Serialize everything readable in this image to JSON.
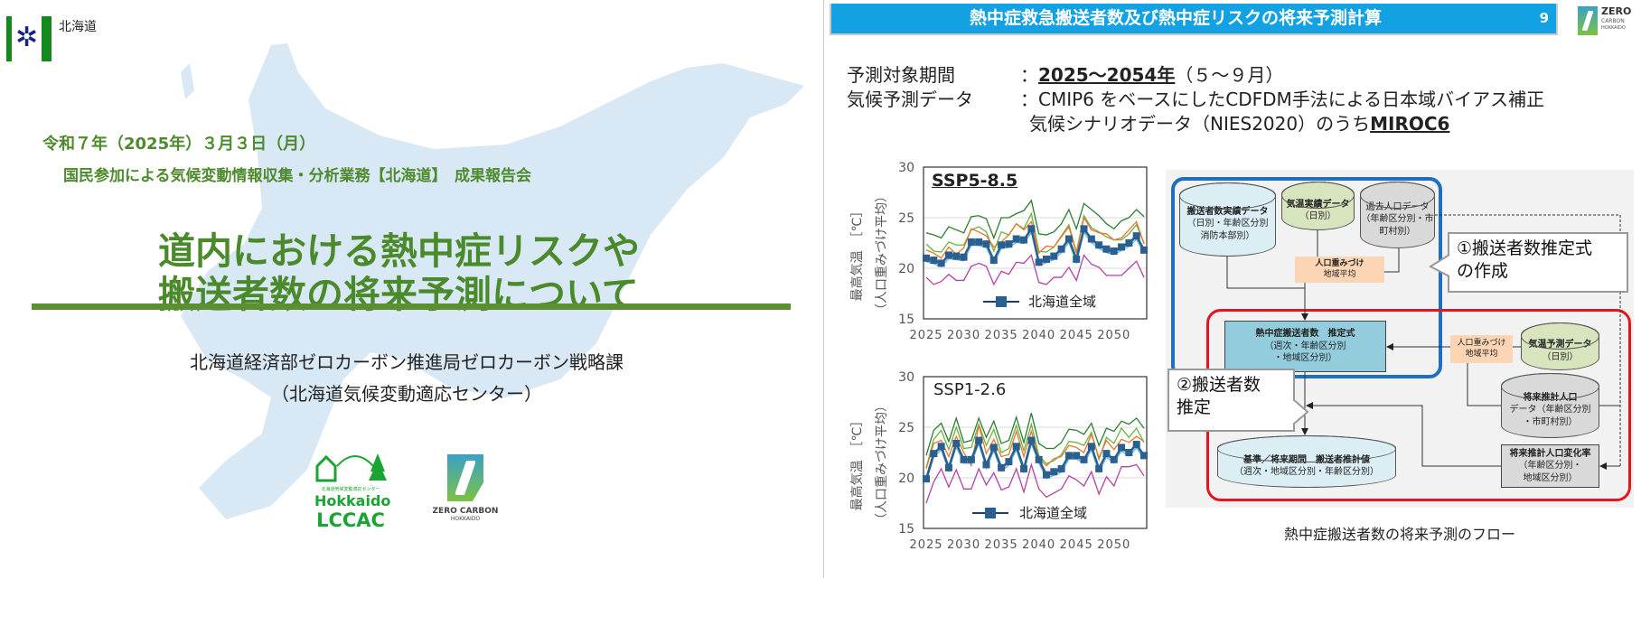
{
  "left": {
    "logo_text": "北海道",
    "date": "令和７年（2025年）３月３日（月）",
    "event": "国民参加による気候変動情報収集・分析業務【北海道】　成果報告会",
    "title_line1": "道内における熱中症リスクや",
    "title_line2": "搬送者数の将来予測について",
    "org": "北海道経済部ゼロカーボン推進局ゼロカーボン戦略課",
    "org_sub": "（北海道気候変動適応センター）",
    "lccac_logo": {
      "small": "北海道気候変動適応センター",
      "line1": "Hokkaido",
      "line2": "LCCAC"
    },
    "zc_logo": {
      "line1": "ZERO CARBON",
      "line2": "HOKKAIDO"
    },
    "colors": {
      "title_green": "#4e8a2d",
      "map_blue": "#d8e8f5"
    }
  },
  "right": {
    "header_title": "熱中症救急搬送者数及び熱中症リスクの将来予測計算",
    "page_number": "9",
    "header_color": "#12a2e4",
    "zc_logo": {
      "line1": "ZERO",
      "line2": "CARBON",
      "line3": "HOKKAIDO"
    },
    "info": {
      "period_label": "予測対象期間",
      "colon": "：",
      "period_bold": "2025～2054年",
      "period_rest": "（５～９月）",
      "data_label": "気候予測データ",
      "data_line1": "：CMIP6 をベースにしたCDFDM手法による日本域バイアス補正",
      "data_line2_pre": "気候シナリオデータ（NIES2020）のうち",
      "data_line2_bold": "MIROC6"
    },
    "flow": {
      "obs_transport": [
        "搬送者数実績データ",
        "（日別・年齢区分別",
        "消防本部別）"
      ],
      "obs_temp": [
        "気温実績データ",
        "（日別）"
      ],
      "past_pop": [
        "過去人口データ",
        "（年齢区分別・市",
        "町村別）"
      ],
      "weight1": [
        "人口重みづけ",
        "地域平均"
      ],
      "callout1": [
        "①搬送者数推定式",
        "の作成"
      ],
      "formula": [
        "熱中症搬送者数　推定式",
        "（週次・年齢区分別",
        "・地域区分別）"
      ],
      "weight2": [
        "人口重みづけ",
        "地域平均"
      ],
      "pred_temp": [
        "気温予測データ",
        "（日別）"
      ],
      "future_pop": [
        "将来推計人口",
        "データ（年齢区分別",
        "・市町村別）"
      ],
      "pop_change": [
        "将来推計人口変化率",
        "（年齢区分別・",
        "地域区分別）"
      ],
      "estimate": [
        "基準／将来期間　搬送者推計値",
        "（週次・地域区分別・年齢区分別）"
      ],
      "callout2": [
        "②搬送者数",
        "推定"
      ],
      "colors": {
        "blue_frame": "#1e6fc0",
        "red_frame": "#e8141c",
        "cyl_blue": "#dbeef4",
        "cyl_green": "#d7e4bd",
        "cyl_grey": "#d9d9d9",
        "weight": "#fcd5b4",
        "formula": "#93cddd"
      }
    },
    "caption": "熱中症搬送者数の将来予測のフロー"
  },
  "chart_data": [
    {
      "type": "line",
      "title": "SSP5-8.5",
      "ylabel": "最高気温　［℃］",
      "ylabel2": "（人口重みづけ平均）",
      "ylim": [
        15,
        30
      ],
      "yticks": [
        "15",
        "20",
        "25",
        "30"
      ],
      "xticks": [
        "2025",
        "2030",
        "2035",
        "2040",
        "2045",
        "2050"
      ],
      "xlim": [
        2025,
        2054
      ],
      "grid": true,
      "legend": "bottom",
      "legend_label": "北海道全域",
      "x_start": 2025,
      "series": [
        {
          "color": "#2e7d32",
          "values": [
            23.5,
            23.3,
            23.0,
            24.1,
            23.8,
            23.5,
            25.1,
            25.2,
            24.9,
            23.0,
            25.0,
            25.0,
            25.4,
            25.7,
            26.7,
            23.4,
            23.3,
            23.6,
            24.4,
            25.8,
            23.9,
            26.4,
            25.8,
            25.2,
            24.4,
            23.9,
            24.7,
            25.0,
            25.8,
            25.1
          ]
        },
        {
          "color": "#6cb33f",
          "values": [
            22.4,
            21.7,
            21.6,
            22.6,
            22.3,
            22.3,
            23.8,
            24.1,
            23.6,
            21.7,
            23.6,
            23.3,
            24.4,
            23.9,
            25.4,
            21.7,
            21.6,
            22.1,
            23.2,
            24.3,
            21.6,
            25.2,
            24.0,
            23.6,
            23.1,
            22.8,
            22.8,
            23.4,
            24.3,
            22.5
          ]
        },
        {
          "color": "#e8772e",
          "values": [
            21.8,
            21.5,
            21.0,
            22.1,
            21.4,
            22.0,
            23.9,
            23.6,
            23.2,
            22.1,
            22.6,
            23.3,
            24.4,
            23.8,
            24.6,
            21.5,
            22.2,
            22.1,
            23.1,
            24.1,
            21.5,
            25.0,
            23.8,
            23.5,
            23.4,
            22.8,
            23.0,
            23.8,
            24.6,
            22.4
          ]
        },
        {
          "name": "北海道全域",
          "color": "#2a5f8f",
          "marker": "square",
          "values": [
            21.0,
            20.8,
            20.5,
            21.3,
            21.2,
            21.1,
            22.6,
            22.6,
            22.4,
            20.8,
            22.3,
            22.4,
            22.9,
            22.8,
            23.9,
            20.6,
            20.9,
            21.2,
            21.9,
            22.9,
            20.9,
            23.9,
            22.9,
            22.3,
            21.9,
            21.7,
            22.1,
            22.5,
            23.2,
            21.8
          ]
        },
        {
          "color": "#b53fa8",
          "values": [
            19.1,
            18.4,
            18.7,
            19.4,
            18.8,
            18.8,
            20.2,
            20.5,
            20.2,
            18.4,
            19.7,
            19.4,
            20.6,
            20.5,
            21.3,
            18.6,
            18.4,
            19.1,
            19.1,
            20.1,
            18.8,
            21.3,
            20.4,
            20.1,
            19.3,
            19.3,
            19.3,
            20.0,
            20.7,
            19.1
          ]
        }
      ]
    },
    {
      "type": "line",
      "title": "SSP1-2.6",
      "ylabel": "最高気温　［℃］",
      "ylabel2": "（人口重みづけ平均）",
      "ylim": [
        15,
        30
      ],
      "yticks": [
        "15",
        "20",
        "25",
        "30"
      ],
      "xticks": [
        "2025",
        "2030",
        "2035",
        "2040",
        "2045",
        "2050"
      ],
      "xlim": [
        2025,
        2054
      ],
      "grid": true,
      "legend": "bottom",
      "legend_label": "北海道全域",
      "x_start": 2025,
      "series": [
        {
          "color": "#2e7d32",
          "values": [
            22.2,
            24.7,
            25.4,
            23.6,
            25.9,
            23.5,
            23.7,
            25.9,
            24.0,
            25.6,
            23.4,
            23.7,
            26.0,
            23.5,
            26.4,
            23.4,
            22.9,
            22.9,
            23.5,
            24.8,
            24.7,
            24.3,
            25.4,
            23.2,
            24.9,
            24.6,
            25.6,
            25.3,
            25.9,
            24.9
          ]
        },
        {
          "color": "#6cb33f",
          "values": [
            21.0,
            23.8,
            24.7,
            22.8,
            25.0,
            22.9,
            23.0,
            25.3,
            23.2,
            24.8,
            22.5,
            22.9,
            25.2,
            22.7,
            25.3,
            22.2,
            21.4,
            21.7,
            22.3,
            23.6,
            23.5,
            23.2,
            24.5,
            21.8,
            24.0,
            23.4,
            24.9,
            24.0,
            24.9,
            23.5
          ]
        },
        {
          "color": "#e8772e",
          "values": [
            20.9,
            23.4,
            23.7,
            22.1,
            24.1,
            22.5,
            21.2,
            25.2,
            22.4,
            23.8,
            22.1,
            22.3,
            24.6,
            22.1,
            24.6,
            21.9,
            21.2,
            21.9,
            22.1,
            23.2,
            23.0,
            22.5,
            24.3,
            22.0,
            23.7,
            22.8,
            23.8,
            23.5,
            24.1,
            23.6
          ]
        },
        {
          "name": "北海道全域",
          "color": "#2a5f8f",
          "marker": "square",
          "values": [
            19.9,
            22.4,
            23.1,
            21.0,
            23.4,
            21.8,
            21.8,
            23.7,
            21.3,
            23.0,
            21.0,
            21.6,
            23.1,
            20.9,
            23.7,
            21.8,
            20.3,
            20.6,
            20.9,
            22.2,
            22.2,
            21.8,
            23.1,
            20.9,
            22.4,
            21.8,
            23.0,
            22.5,
            23.3,
            22.2
          ]
        },
        {
          "color": "#b53fa8",
          "values": [
            17.5,
            19.6,
            20.9,
            19.1,
            20.8,
            18.9,
            18.9,
            20.9,
            19.3,
            20.5,
            18.8,
            19.1,
            20.9,
            18.6,
            21.3,
            18.9,
            18.1,
            18.5,
            18.9,
            20.2,
            19.8,
            19.2,
            20.6,
            18.4,
            20.1,
            19.2,
            21.1,
            21.1,
            21.3,
            20.2
          ]
        }
      ]
    }
  ]
}
